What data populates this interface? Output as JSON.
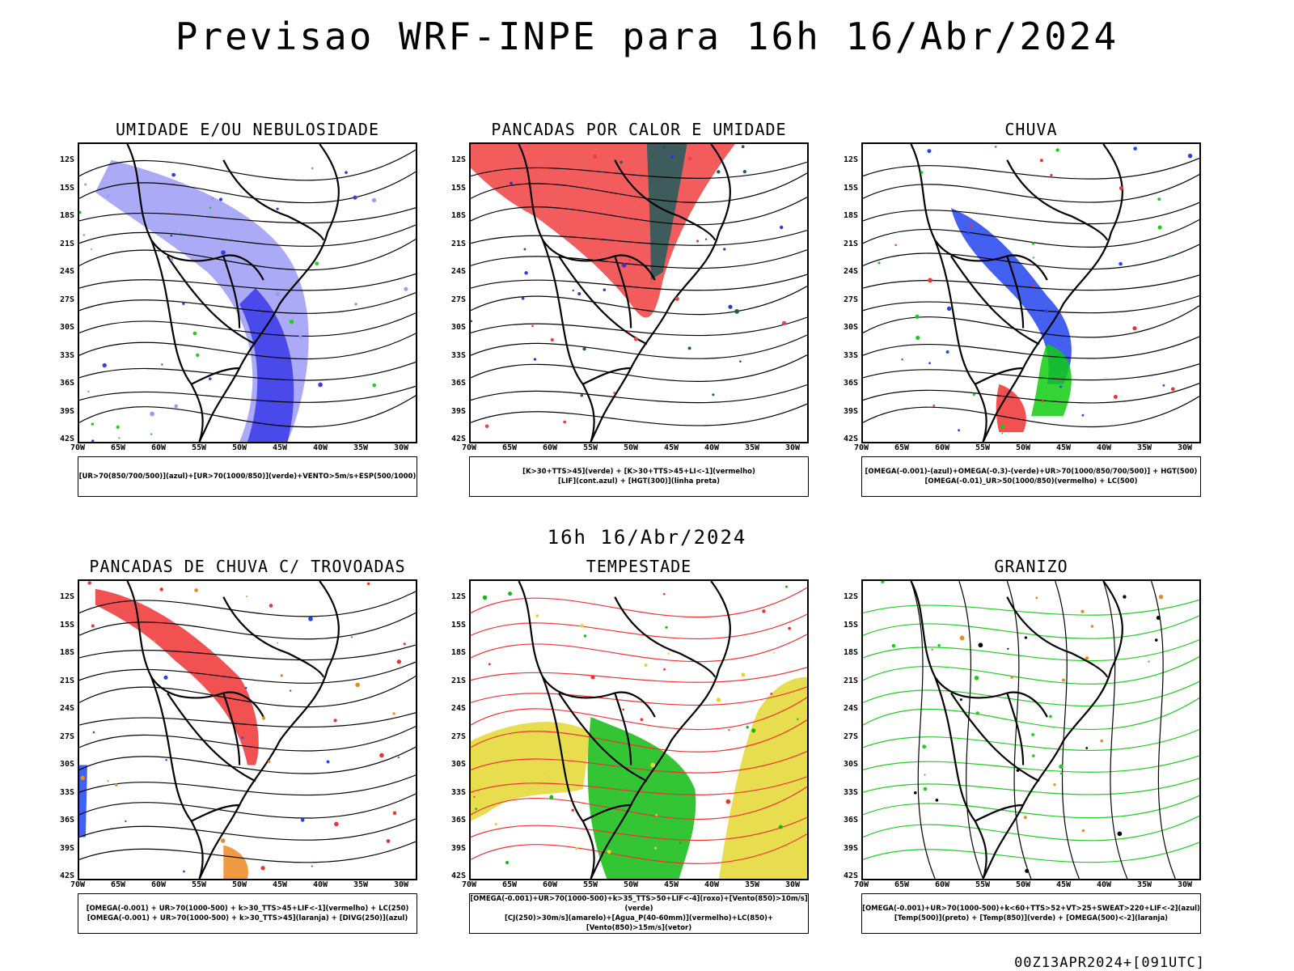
{
  "title": "Previsao WRF-INPE  para 16h 16/Abr/2024",
  "subtitle": "16h 16/Abr/2024",
  "footer": "00Z13APR2024+[091UTC]",
  "lat_labels": [
    "12S",
    "15S",
    "18S",
    "21S",
    "24S",
    "27S",
    "30S",
    "33S",
    "36S",
    "39S",
    "42S"
  ],
  "lon_labels": [
    "70W",
    "65W",
    "60W",
    "55W",
    "50W",
    "45W",
    "40W",
    "35W",
    "30W"
  ],
  "panels": [
    {
      "title": "UMIDADE E/OU NEBULOSIDADE",
      "legend": [
        "[UR>70(850/700/500)](azul)+[UR>70(1000/850)](verde)+VENTO>5m/s+ESP(500/1000)"
      ],
      "fills": [
        "#9b9bf5",
        "#3a3ae8",
        "#22cc22"
      ]
    },
    {
      "title": "PANCADAS POR CALOR E UMIDADE",
      "legend": [
        "[K>30+TTS>45](verde) + [K>30+TTS>45+LI<-1](vermelho)",
        "[LIF](cont.azul) + [HGT(300)](linha preta)"
      ],
      "fills": [
        "#f04040",
        "#1f5c5c",
        "#2a3ae0"
      ]
    },
    {
      "title": "CHUVA",
      "legend": [
        "[OMEGA(-0.001)-(azul)+OMEGA(-0.3)-(verde)+UR>70(1000/850/700/500)] + HGT(500)",
        "[OMEGA(-0.01)_UR>50(1000/850)(vermelho) + LC(500)"
      ],
      "fills": [
        "#2244ee",
        "#11cc11",
        "#ee3333"
      ]
    },
    {
      "title": "PANCADAS DE CHUVA C/ TROVOADAS",
      "legend": [
        "[OMEGA(-0.001) + UR>70(1000-500) + k>30_TTS>45+LIF<-1](vermelho) + LC(250)",
        "[OMEGA(-0.001) + UR>70(1000-500) + k>30_TTS>45](laranja) + [DIVG(250)](azul)"
      ],
      "fills": [
        "#ee3333",
        "#ee8822",
        "#2244ee"
      ]
    },
    {
      "title": "TEMPESTADE",
      "legend": [
        "[OMEGA(-0.001)+UR>70(1000-500)+k>35_TTS>50+LIF<-4](roxo)+[Vento(850)>10m/s](verde)",
        "[CJ(250)>30m/s](amarelo)+[Agua_P(40-60mm)](vermelho)+LC(850)+[Vento(850)>15m/s](vetor)"
      ],
      "fills": [
        "#e4d630",
        "#11bb11",
        "#ee3333"
      ]
    },
    {
      "title": "GRANIZO",
      "legend": [
        "[OMEGA(-0.001)+UR>70(1000-500)+k<60+TTS>52+VT>25+SWEAT>220+LIF<-2](azul)",
        "[Temp(500)](preto) + [Temp(850)](verde) + [OMEGA(500)<-2](laranja)"
      ],
      "fills": [
        "#22cc22",
        "#ee8822",
        "#000000"
      ]
    }
  ]
}
